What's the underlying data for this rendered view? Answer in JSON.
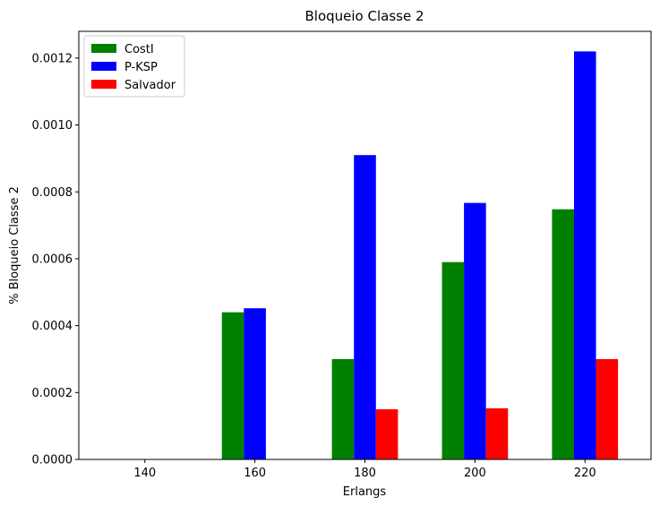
{
  "chart_data": {
    "type": "bar",
    "title": "Bloqueio Classe 2",
    "xlabel": "Erlangs",
    "ylabel": "% Bloqueio Classe 2",
    "categories": [
      "140",
      "160",
      "180",
      "200",
      "220"
    ],
    "series": [
      {
        "name": "CostI",
        "color": "#008000",
        "values": [
          0.0,
          0.00044,
          0.0003,
          0.00059,
          0.000748
        ]
      },
      {
        "name": "P-KSP",
        "color": "#0000ff",
        "values": [
          0.0,
          0.000452,
          0.00091,
          0.000767,
          0.00122
        ]
      },
      {
        "name": "Salvador",
        "color": "#ff0000",
        "values": [
          0.0,
          0.0,
          0.00015,
          0.000153,
          0.0003
        ]
      }
    ],
    "ylim": [
      0,
      0.00128
    ],
    "yticks": [
      0.0,
      0.0002,
      0.0004,
      0.0006,
      0.0008,
      0.001,
      0.0012
    ],
    "ytick_labels": [
      "0.0000",
      "0.0002",
      "0.0004",
      "0.0006",
      "0.0008",
      "0.0010",
      "0.0012"
    ],
    "grid": false,
    "legend_position": "top-left"
  }
}
